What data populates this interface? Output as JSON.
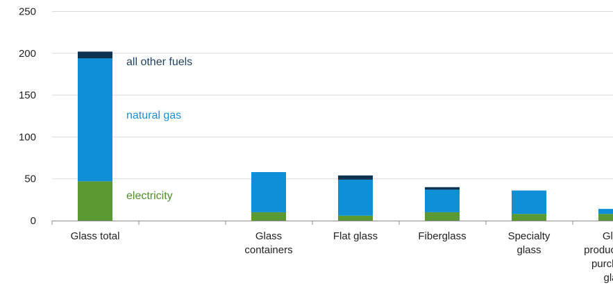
{
  "chart_data": {
    "type": "bar",
    "stacked": true,
    "categories": [
      [
        "Glass total"
      ],
      [],
      [
        "Glass",
        "containers"
      ],
      [
        "Flat glass"
      ],
      [
        "Fiberglass"
      ],
      [
        "Specialty",
        "glass"
      ],
      [
        "Glass",
        "products from",
        "purchased",
        "glass"
      ]
    ],
    "series": [
      {
        "key": "electricity",
        "color": "#5b9a32",
        "values": [
          47,
          null,
          10,
          6,
          10,
          8,
          8
        ]
      },
      {
        "key": "natural_gas",
        "color": "#0e8fd6",
        "values": [
          147,
          null,
          48,
          43,
          27,
          28,
          6
        ]
      },
      {
        "key": "other_fuels",
        "color": "#0e3350",
        "values": [
          8,
          null,
          0,
          5,
          3,
          0,
          0
        ]
      }
    ],
    "annotations": [
      {
        "text": "all other fuels",
        "color": "#1f3f5c",
        "category": 0,
        "y": 190
      },
      {
        "text": "natural gas",
        "color": "#1a8fd0",
        "category": 0,
        "y": 126
      },
      {
        "text": "electricity",
        "color": "#4f8c2a",
        "category": 0,
        "y": 30
      }
    ],
    "yticks": [
      0,
      50,
      100,
      150,
      200,
      250
    ],
    "ylim": [
      0,
      250
    ],
    "grid": true
  }
}
